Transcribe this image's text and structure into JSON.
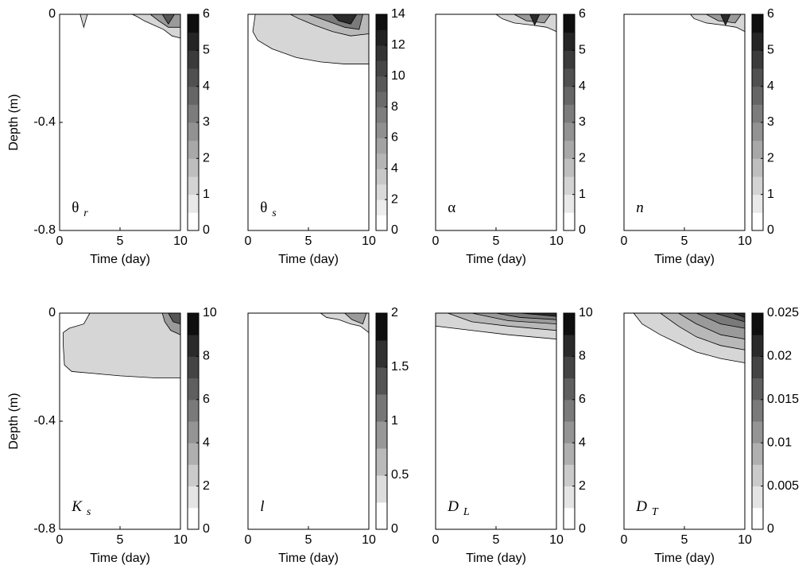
{
  "chart_data": [
    {
      "type": "contour",
      "label": {
        "symbol": "θ",
        "subscript": "r"
      },
      "xlabel": "Time (day)",
      "ylabel": "Depth (m)",
      "xlim": [
        0,
        10
      ],
      "xticks": [
        0,
        5,
        10
      ],
      "ylim": [
        -0.8,
        0
      ],
      "yticks": [
        0,
        -0.4,
        -0.8
      ],
      "clim": [
        0,
        6
      ],
      "cticks": [
        0,
        1,
        2,
        3,
        4,
        5,
        6
      ]
    },
    {
      "type": "contour",
      "label": {
        "symbol": "θ",
        "subscript": "s"
      },
      "xlabel": "Time (day)",
      "xlim": [
        0,
        10
      ],
      "xticks": [
        0,
        5,
        10
      ],
      "ylim": [
        -0.8,
        0
      ],
      "clim": [
        0,
        14
      ],
      "cticks": [
        0,
        2,
        4,
        6,
        8,
        10,
        12,
        14
      ]
    },
    {
      "type": "contour",
      "label": {
        "symbol": "α"
      },
      "xlabel": "Time (day)",
      "xlim": [
        0,
        10
      ],
      "xticks": [
        0,
        5,
        10
      ],
      "ylim": [
        -0.8,
        0
      ],
      "clim": [
        0,
        6
      ],
      "cticks": [
        0,
        1,
        2,
        3,
        4,
        5,
        6
      ]
    },
    {
      "type": "contour",
      "label": {
        "symbol": "n"
      },
      "xlabel": "Time (day)",
      "xlim": [
        0,
        10
      ],
      "xticks": [
        0,
        5,
        10
      ],
      "ylim": [
        -0.8,
        0
      ],
      "clim": [
        0,
        6
      ],
      "cticks": [
        0,
        1,
        2,
        3,
        4,
        5,
        6
      ]
    },
    {
      "type": "contour",
      "label": {
        "symbol": "K",
        "subscript": "s"
      },
      "xlabel": "Time (day)",
      "ylabel": "Depth (m)",
      "xlim": [
        0,
        10
      ],
      "xticks": [
        0,
        5,
        10
      ],
      "ylim": [
        -0.8,
        0
      ],
      "yticks": [
        0,
        -0.4,
        -0.8
      ],
      "clim": [
        0,
        10
      ],
      "cticks": [
        0,
        2,
        4,
        6,
        8,
        10
      ]
    },
    {
      "type": "contour",
      "label": {
        "symbol": "l"
      },
      "xlabel": "Time (day)",
      "xlim": [
        0,
        10
      ],
      "xticks": [
        0,
        5,
        10
      ],
      "ylim": [
        -0.8,
        0
      ],
      "clim": [
        0,
        2
      ],
      "cticks": [
        0,
        0.5,
        1,
        1.5,
        2
      ]
    },
    {
      "type": "contour",
      "label": {
        "symbol": "D",
        "subscript": "L"
      },
      "xlabel": "Time (day)",
      "xlim": [
        0,
        10
      ],
      "xticks": [
        0,
        5,
        10
      ],
      "ylim": [
        -0.8,
        0
      ],
      "clim": [
        0,
        10
      ],
      "cticks": [
        0,
        2,
        4,
        6,
        8,
        10
      ]
    },
    {
      "type": "contour",
      "label": {
        "symbol": "D",
        "subscript": "T"
      },
      "xlabel": "Time (day)",
      "xlim": [
        0,
        10
      ],
      "xticks": [
        0,
        5,
        10
      ],
      "ylim": [
        -0.8,
        0
      ],
      "clim": [
        0,
        0.025
      ],
      "cticks": [
        0,
        0.005,
        0.01,
        0.015,
        0.02,
        0.025
      ]
    }
  ]
}
